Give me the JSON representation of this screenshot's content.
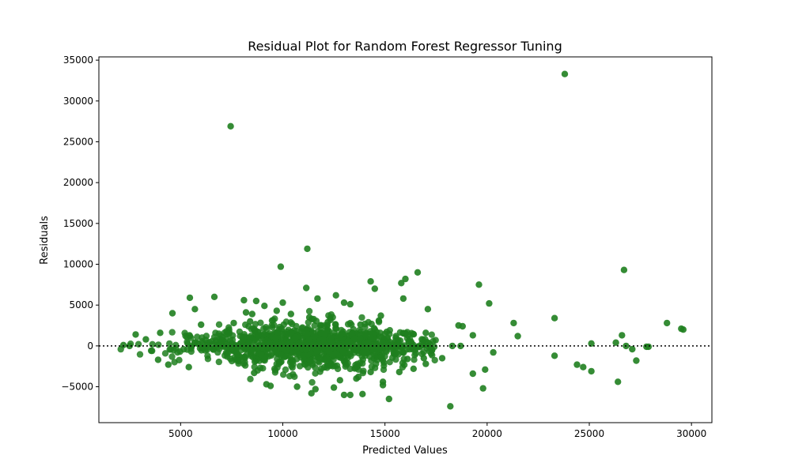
{
  "chart_data": {
    "type": "scatter",
    "title": "Residual Plot for Random Forest Regressor Tuning",
    "xlabel": "Predicted Values",
    "ylabel": "Residuals",
    "xlim": [
      1000,
      31000
    ],
    "ylim": [
      -9400,
      35400
    ],
    "xticks": [
      5000,
      10000,
      15000,
      20000,
      25000,
      30000
    ],
    "yticks": [
      -5000,
      0,
      5000,
      10000,
      15000,
      20000,
      25000,
      30000,
      35000
    ],
    "reference_line": {
      "y": 0,
      "style": "dotted"
    },
    "point_color": "#1f7f1f",
    "series": [
      {
        "values_xy": [
          [
            7450,
            26900
          ],
          [
            23800,
            33300
          ],
          [
            11200,
            11900
          ],
          [
            9900,
            9700
          ],
          [
            26700,
            9300
          ],
          [
            16600,
            9000
          ],
          [
            14300,
            7900
          ],
          [
            11150,
            7100
          ],
          [
            14500,
            7000
          ],
          [
            16000,
            8200
          ],
          [
            15800,
            7700
          ],
          [
            19600,
            7500
          ],
          [
            6650,
            6000
          ],
          [
            5450,
            5900
          ],
          [
            12600,
            6200
          ],
          [
            11700,
            5800
          ],
          [
            15900,
            5800
          ],
          [
            8100,
            5600
          ],
          [
            8700,
            5500
          ],
          [
            10000,
            5300
          ],
          [
            13000,
            5300
          ],
          [
            13300,
            5100
          ],
          [
            20100,
            5200
          ],
          [
            5700,
            4500
          ],
          [
            9100,
            4900
          ],
          [
            17100,
            4500
          ],
          [
            8200,
            4100
          ],
          [
            8500,
            3900
          ],
          [
            9700,
            4300
          ],
          [
            4600,
            4000
          ],
          [
            14800,
            3700
          ],
          [
            23300,
            3400
          ],
          [
            21300,
            2800
          ],
          [
            28800,
            2800
          ],
          [
            18600,
            2500
          ],
          [
            18800,
            2400
          ],
          [
            29500,
            2100
          ],
          [
            29600,
            2000
          ],
          [
            19300,
            1300
          ],
          [
            21500,
            1200
          ],
          [
            26600,
            1300
          ],
          [
            26300,
            400
          ],
          [
            25100,
            300
          ],
          [
            26800,
            0
          ],
          [
            27800,
            -100
          ],
          [
            27900,
            -100
          ],
          [
            27100,
            -400
          ],
          [
            18300,
            0
          ],
          [
            18700,
            0
          ],
          [
            20300,
            -800
          ],
          [
            23300,
            -1200
          ],
          [
            27300,
            -1800
          ],
          [
            24400,
            -2300
          ],
          [
            24700,
            -2600
          ],
          [
            25100,
            -3100
          ],
          [
            19300,
            -3400
          ],
          [
            19900,
            -2900
          ],
          [
            26400,
            -4400
          ],
          [
            19800,
            -5200
          ],
          [
            18200,
            -7400
          ],
          [
            15200,
            -6500
          ],
          [
            13000,
            -6000
          ],
          [
            13300,
            -6000
          ],
          [
            13900,
            -5900
          ],
          [
            14900,
            -4400
          ],
          [
            14900,
            -4800
          ],
          [
            12500,
            -5100
          ],
          [
            11600,
            -5300
          ],
          [
            11400,
            -5800
          ],
          [
            10700,
            -5000
          ],
          [
            9200,
            -4700
          ],
          [
            9400,
            -4900
          ],
          [
            8600,
            -3300
          ],
          [
            12800,
            -4200
          ],
          [
            13700,
            -3800
          ],
          [
            13600,
            -4000
          ],
          [
            5400,
            -2600
          ],
          [
            4400,
            -2300
          ],
          [
            3900,
            -1700
          ],
          [
            3600,
            -600
          ],
          [
            2200,
            100
          ],
          [
            2500,
            0
          ],
          [
            2800,
            1400
          ],
          [
            3300,
            800
          ],
          [
            4000,
            1600
          ],
          [
            17000,
            1600
          ],
          [
            17300,
            -500
          ],
          [
            17000,
            -2200
          ],
          [
            17800,
            -1500
          ],
          [
            16900,
            -1500
          ],
          [
            16400,
            -2800
          ],
          [
            16100,
            -1600
          ],
          [
            15700,
            -3200
          ],
          [
            14300,
            -3200
          ],
          [
            6000,
            2600
          ],
          [
            7600,
            2800
          ],
          [
            8400,
            3000
          ],
          [
            10400,
            3900
          ],
          [
            11300,
            3500
          ],
          [
            12200,
            2900
          ],
          [
            13800,
            2600
          ],
          [
            14700,
            3100
          ]
        ]
      }
    ],
    "dense_cloud": {
      "x_range": [
        2000,
        17500
      ],
      "center_x": 11500,
      "spread_y": 2800,
      "count": 1100
    }
  }
}
